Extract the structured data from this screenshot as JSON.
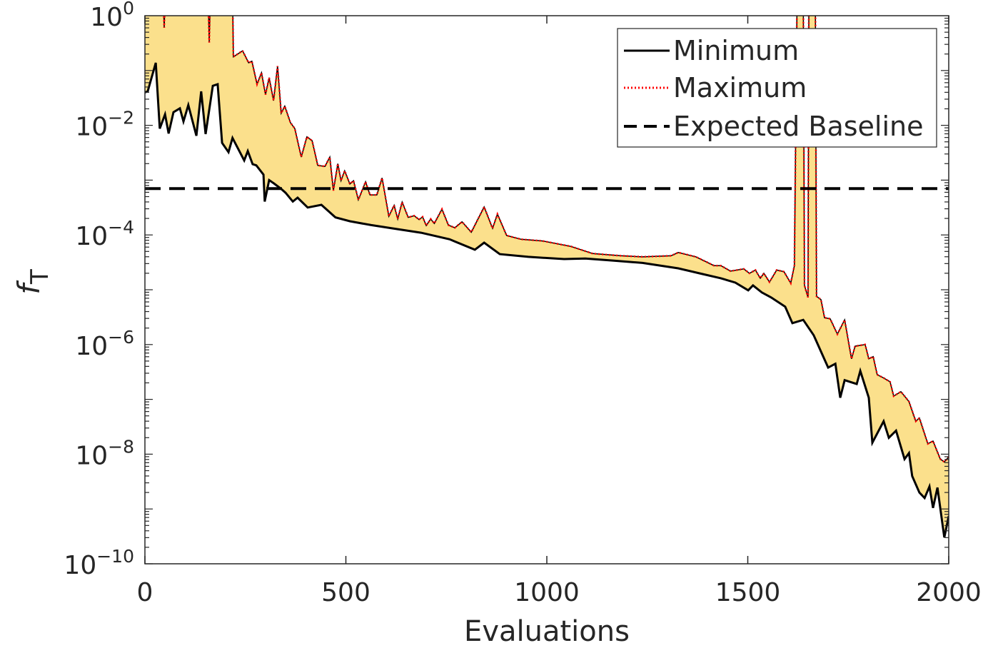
{
  "chart_data": {
    "type": "area",
    "title": "",
    "xlabel": "Evaluations",
    "ylabel": "f",
    "ylabel_subscript": "T",
    "xlim": [
      0,
      2000
    ],
    "ylim": [
      1e-10,
      1
    ],
    "yscale": "log",
    "grid": false,
    "legend_position": "top-right",
    "x_ticks": [
      0,
      500,
      1000,
      1500,
      2000
    ],
    "x_tick_labels": [
      "0",
      "500",
      "1000",
      "1500",
      "2000"
    ],
    "y_ticks": [
      {
        "base": "10",
        "exp": "0",
        "value_log10": 0
      },
      {
        "base": "10",
        "exp": "−2",
        "value_log10": -2
      },
      {
        "base": "10",
        "exp": "−4",
        "value_log10": -4
      },
      {
        "base": "10",
        "exp": "−6",
        "value_log10": -6
      },
      {
        "base": "10",
        "exp": "−8",
        "value_log10": -8
      },
      {
        "base": "10",
        "exp": "−10",
        "value_log10": -10
      }
    ],
    "fill_color": "#fbe08c",
    "series": [
      {
        "name": "Minimum",
        "style": "solid",
        "color": "#000000",
        "x": [
          0,
          7,
          27,
          37,
          50,
          59,
          71,
          87,
          96,
          108,
          128,
          140,
          151,
          169,
          181,
          192,
          208,
          218,
          247,
          256,
          268,
          277,
          295,
          298,
          309,
          321,
          339,
          350,
          368,
          380,
          405,
          439,
          474,
          510,
          563,
          616,
          687,
          758,
          821,
          844,
          883,
          954,
          1043,
          1096,
          1167,
          1238,
          1327,
          1380,
          1433,
          1469,
          1501,
          1513,
          1535,
          1558,
          1593,
          1611,
          1638,
          1664,
          1700,
          1718,
          1730,
          1741,
          1771,
          1780,
          1801,
          1810,
          1838,
          1851,
          1869,
          1890,
          1901,
          1909,
          1927,
          1940,
          1952,
          1961,
          1972,
          1989,
          2000
        ],
        "y_log10": [
          -1.4,
          -1.38,
          -0.86,
          -2.06,
          -1.8,
          -2.15,
          -1.76,
          -1.69,
          -1.93,
          -1.63,
          -2.19,
          -1.38,
          -2.16,
          -1.28,
          -1.25,
          -2.32,
          -2.49,
          -2.23,
          -2.64,
          -2.47,
          -2.71,
          -2.73,
          -2.9,
          -3.39,
          -3.0,
          -3.06,
          -3.16,
          -3.23,
          -3.39,
          -3.32,
          -3.5,
          -3.45,
          -3.68,
          -3.75,
          -3.82,
          -3.88,
          -3.96,
          -4.08,
          -4.27,
          -4.14,
          -4.35,
          -4.4,
          -4.44,
          -4.43,
          -4.47,
          -4.51,
          -4.61,
          -4.7,
          -4.79,
          -4.87,
          -5.01,
          -4.92,
          -5.05,
          -5.14,
          -5.31,
          -5.61,
          -5.55,
          -5.83,
          -6.42,
          -6.35,
          -6.97,
          -6.65,
          -6.72,
          -6.48,
          -6.97,
          -7.79,
          -7.4,
          -7.7,
          -7.57,
          -8.09,
          -7.98,
          -8.4,
          -8.7,
          -8.8,
          -8.59,
          -8.98,
          -8.61,
          -9.52,
          -9.13
        ]
      },
      {
        "name": "Maximum",
        "style": "dotted",
        "color": "#ff0000",
        "x": [
          0,
          45,
          48,
          51,
          157,
          160,
          163,
          218,
          220,
          243,
          258,
          266,
          279,
          290,
          300,
          309,
          320,
          330,
          339,
          348,
          362,
          373,
          389,
          403,
          416,
          430,
          448,
          460,
          469,
          480,
          488,
          497,
          510,
          519,
          531,
          549,
          560,
          577,
          590,
          607,
          620,
          629,
          640,
          655,
          670,
          682,
          691,
          700,
          711,
          720,
          739,
          755,
          771,
          789,
          812,
          826,
          844,
          865,
          877,
          900,
          936,
          989,
          1060,
          1114,
          1185,
          1238,
          1309,
          1327,
          1371,
          1416,
          1433,
          1457,
          1490,
          1504,
          1519,
          1531,
          1540,
          1554,
          1572,
          1590,
          1607,
          1616,
          1623,
          1638,
          1641,
          1650,
          1652,
          1668,
          1671,
          1682,
          1691,
          1705,
          1723,
          1741,
          1758,
          1767,
          1792,
          1801,
          1812,
          1822,
          1838,
          1854,
          1863,
          1881,
          1901,
          1918,
          1927,
          1948,
          1961,
          1979,
          1989,
          2000
        ],
        "y_log10": [
          0.5,
          0.5,
          -0.22,
          0.5,
          0.5,
          -0.49,
          0.5,
          0.5,
          -0.75,
          -0.64,
          -0.86,
          -0.83,
          -1.25,
          -1.04,
          -1.44,
          -1.13,
          -1.55,
          -0.92,
          -1.78,
          -1.65,
          -1.95,
          -2.06,
          -2.58,
          -2.21,
          -2.28,
          -2.73,
          -2.75,
          -2.58,
          -3.19,
          -2.7,
          -3.01,
          -2.83,
          -3.07,
          -3.01,
          -3.36,
          -3.03,
          -3.27,
          -3.27,
          -2.96,
          -3.66,
          -3.46,
          -3.71,
          -3.4,
          -3.68,
          -3.65,
          -3.72,
          -3.67,
          -3.83,
          -3.71,
          -3.79,
          -3.53,
          -3.82,
          -3.87,
          -3.76,
          -3.95,
          -3.75,
          -3.49,
          -3.88,
          -3.62,
          -4.01,
          -4.08,
          -4.11,
          -4.21,
          -4.34,
          -4.38,
          -4.4,
          -4.38,
          -4.32,
          -4.4,
          -4.56,
          -4.56,
          -4.66,
          -4.62,
          -4.7,
          -4.64,
          -4.79,
          -4.7,
          -4.86,
          -4.64,
          -4.67,
          -4.88,
          -4.56,
          0.5,
          0.5,
          -4.92,
          -5.14,
          0.5,
          0.5,
          -5.12,
          -5.18,
          -5.51,
          -5.53,
          -5.81,
          -5.55,
          -6.26,
          -6.03,
          -6.0,
          -6.26,
          -6.22,
          -6.55,
          -6.61,
          -6.68,
          -6.94,
          -6.86,
          -7.04,
          -7.4,
          -7.34,
          -7.81,
          -7.76,
          -8.09,
          -8.14,
          -8.05
        ]
      },
      {
        "name": "Expected Baseline",
        "style": "dashed",
        "color": "#000000",
        "y_constant": 0.0007
      }
    ]
  }
}
